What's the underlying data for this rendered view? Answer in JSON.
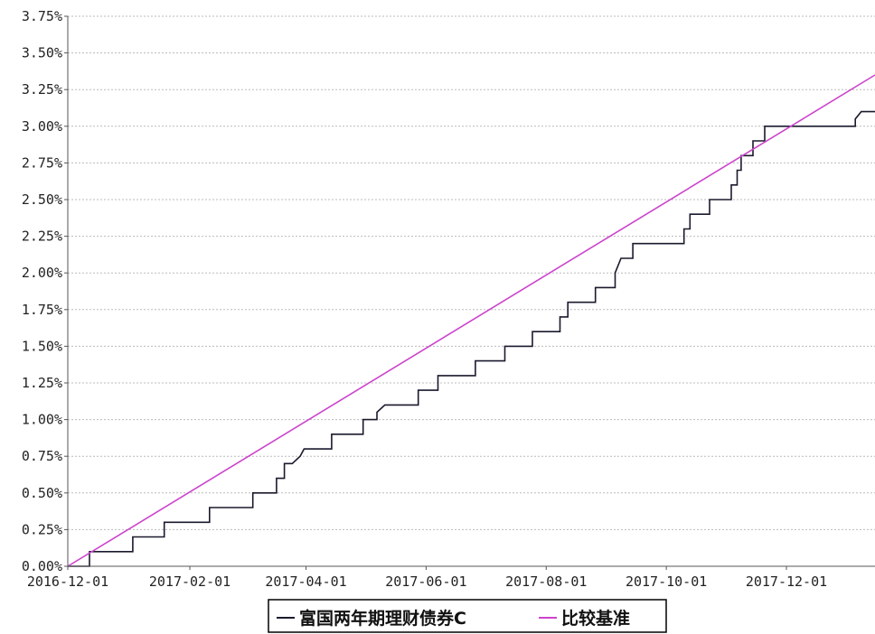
{
  "chart_data": {
    "type": "line",
    "title": "",
    "xlabel": "",
    "ylabel": "",
    "ylim": [
      0,
      0.0375
    ],
    "xlim": [
      "2016-12-01",
      "2018-01-15"
    ],
    "y_ticks": [
      "0.00%",
      "0.25%",
      "0.50%",
      "0.75%",
      "1.00%",
      "1.25%",
      "1.50%",
      "1.75%",
      "2.00%",
      "2.25%",
      "2.50%",
      "2.75%",
      "3.00%",
      "3.25%",
      "3.50%",
      "3.75%"
    ],
    "x_ticks": [
      "2016-12-01",
      "2017-02-01",
      "2017-04-01",
      "2017-06-01",
      "2017-08-01",
      "2017-10-01",
      "2017-12-01"
    ],
    "grid": true,
    "legend": "bottom",
    "series": [
      {
        "name": "富国两年期理财债券C",
        "color": "#1a1a2e",
        "step": true,
        "points": [
          [
            "2016-12-01",
            0.0
          ],
          [
            "2016-12-12",
            0.0
          ],
          [
            "2016-12-12",
            0.001
          ],
          [
            "2017-01-03",
            0.001
          ],
          [
            "2017-01-03",
            0.002
          ],
          [
            "2017-01-19",
            0.002
          ],
          [
            "2017-01-19",
            0.003
          ],
          [
            "2017-02-11",
            0.003
          ],
          [
            "2017-02-11",
            0.004
          ],
          [
            "2017-03-05",
            0.004
          ],
          [
            "2017-03-05",
            0.005
          ],
          [
            "2017-03-17",
            0.005
          ],
          [
            "2017-03-17",
            0.006
          ],
          [
            "2017-03-21",
            0.006
          ],
          [
            "2017-03-21",
            0.007
          ],
          [
            "2017-03-25",
            0.007
          ],
          [
            "2017-03-29",
            0.0075
          ],
          [
            "2017-03-31",
            0.008
          ],
          [
            "2017-04-14",
            0.008
          ],
          [
            "2017-04-14",
            0.009
          ],
          [
            "2017-04-30",
            0.009
          ],
          [
            "2017-04-30",
            0.01
          ],
          [
            "2017-05-07",
            0.01
          ],
          [
            "2017-05-07",
            0.0105
          ],
          [
            "2017-05-11",
            0.011
          ],
          [
            "2017-05-28",
            0.011
          ],
          [
            "2017-05-28",
            0.012
          ],
          [
            "2017-06-07",
            0.012
          ],
          [
            "2017-06-07",
            0.013
          ],
          [
            "2017-06-26",
            0.013
          ],
          [
            "2017-06-26",
            0.014
          ],
          [
            "2017-07-11",
            0.014
          ],
          [
            "2017-07-11",
            0.015
          ],
          [
            "2017-07-25",
            0.015
          ],
          [
            "2017-07-25",
            0.016
          ],
          [
            "2017-08-08",
            0.016
          ],
          [
            "2017-08-08",
            0.017
          ],
          [
            "2017-08-12",
            0.017
          ],
          [
            "2017-08-12",
            0.018
          ],
          [
            "2017-08-26",
            0.018
          ],
          [
            "2017-08-26",
            0.019
          ],
          [
            "2017-09-05",
            0.019
          ],
          [
            "2017-09-05",
            0.02
          ],
          [
            "2017-09-08",
            0.021
          ],
          [
            "2017-09-14",
            0.021
          ],
          [
            "2017-09-14",
            0.022
          ],
          [
            "2017-10-10",
            0.022
          ],
          [
            "2017-10-10",
            0.023
          ],
          [
            "2017-10-13",
            0.023
          ],
          [
            "2017-10-13",
            0.024
          ],
          [
            "2017-10-23",
            0.024
          ],
          [
            "2017-10-23",
            0.025
          ],
          [
            "2017-11-03",
            0.025
          ],
          [
            "2017-11-03",
            0.026
          ],
          [
            "2017-11-06",
            0.026
          ],
          [
            "2017-11-06",
            0.027
          ],
          [
            "2017-11-08",
            0.027
          ],
          [
            "2017-11-08",
            0.028
          ],
          [
            "2017-11-14",
            0.028
          ],
          [
            "2017-11-14",
            0.029
          ],
          [
            "2017-11-20",
            0.029
          ],
          [
            "2017-11-20",
            0.03
          ],
          [
            "2018-01-05",
            0.03
          ],
          [
            "2018-01-05",
            0.0305
          ],
          [
            "2018-01-08",
            0.031
          ],
          [
            "2018-01-15",
            0.031
          ]
        ]
      },
      {
        "name": "比较基准",
        "color": "#cc44cc",
        "step": false,
        "points": [
          [
            "2016-12-01",
            0.0
          ],
          [
            "2018-01-15",
            0.0335
          ]
        ]
      }
    ]
  }
}
